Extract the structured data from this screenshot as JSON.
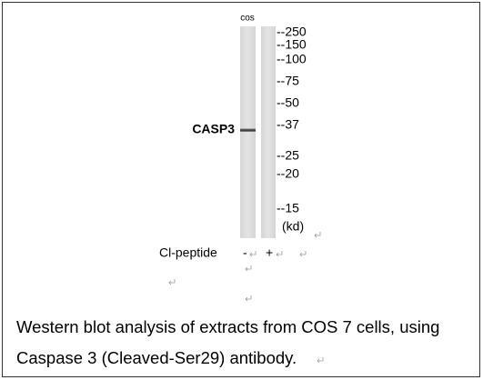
{
  "figure": {
    "lane_label": "cos",
    "protein": "CASP3",
    "markers": [
      "--250",
      "--150",
      "--100",
      "--75",
      "--50",
      "--37",
      "--25",
      "--20",
      "--15",
      "(kd)"
    ],
    "treatment": {
      "label": "Cl-peptide",
      "lanes": [
        "-",
        "+"
      ]
    },
    "caption": [
      "Western blot analysis of extracts from COS 7 cells, using",
      "Caspase 3 (Cleaved-Ser29) antibody."
    ]
  }
}
